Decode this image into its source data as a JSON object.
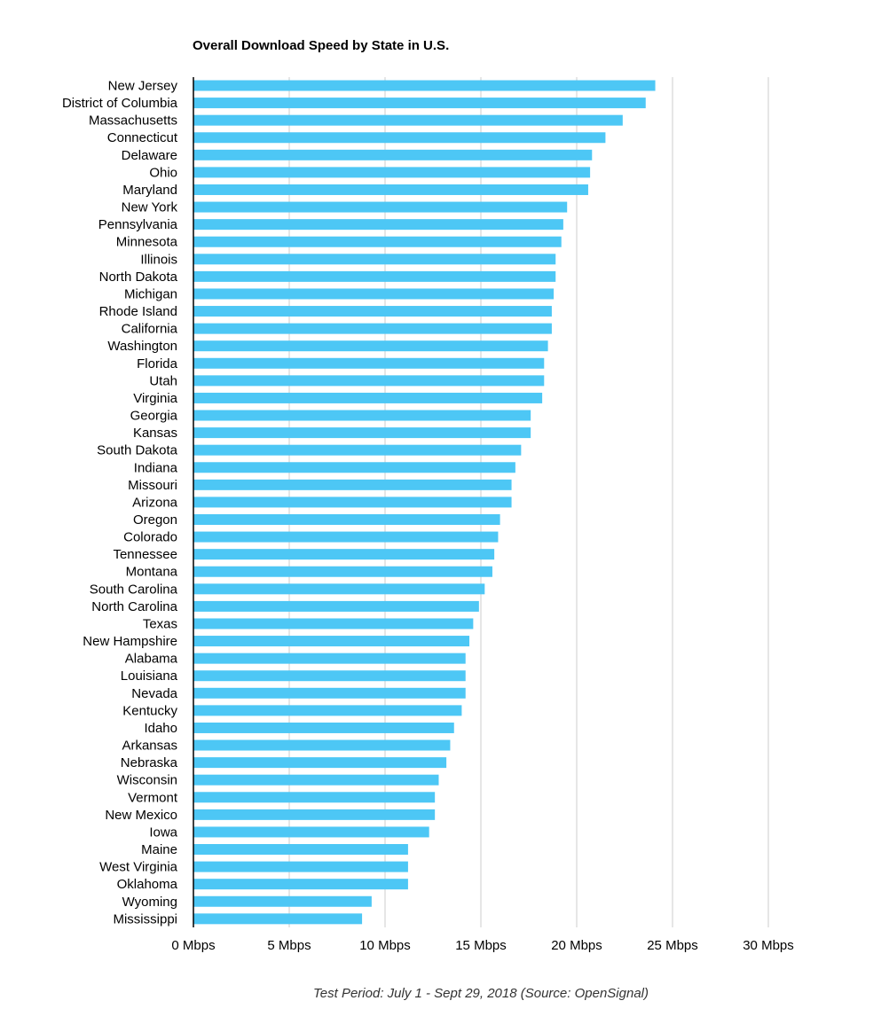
{
  "chart_data": {
    "type": "bar",
    "orientation": "horizontal",
    "title": "Overall Download Speed by State in U.S.",
    "footnote": "Test Period: July 1 - Sept 29, 2018 (Source: OpenSignal)",
    "xlabel": "",
    "ylabel": "",
    "xlim": [
      0,
      30
    ],
    "x_ticks": [
      0,
      5,
      10,
      15,
      20,
      25,
      30
    ],
    "x_tick_labels": [
      "0 Mbps",
      "5 Mbps",
      "10 Mbps",
      "15 Mbps",
      "20 Mbps",
      "25 Mbps",
      "30 Mbps"
    ],
    "grid": "vertical",
    "legend": "none",
    "bar_color": "#4dc7f5",
    "gridline_color": "#cccccc",
    "axis_color": "#000000",
    "categories": [
      "New Jersey",
      "District of Columbia",
      "Massachusetts",
      "Connecticut",
      "Delaware",
      "Ohio",
      "Maryland",
      "New York",
      "Pennsylvania",
      "Minnesota",
      "Illinois",
      "North Dakota",
      "Michigan",
      "Rhode Island",
      "California",
      "Washington",
      "Florida",
      "Utah",
      "Virginia",
      "Georgia",
      "Kansas",
      "South Dakota",
      "Indiana",
      "Missouri",
      "Arizona",
      "Oregon",
      "Colorado",
      "Tennessee",
      "Montana",
      "South Carolina",
      "North Carolina",
      "Texas",
      "New Hampshire",
      "Alabama",
      "Louisiana",
      "Nevada",
      "Kentucky",
      "Idaho",
      "Arkansas",
      "Nebraska",
      "Wisconsin",
      "Vermont",
      "New Mexico",
      "Iowa",
      "Maine",
      "West Virginia",
      "Oklahoma",
      "Wyoming",
      "Mississippi"
    ],
    "values": [
      24.1,
      23.6,
      22.4,
      21.5,
      20.8,
      20.7,
      20.6,
      19.5,
      19.3,
      19.2,
      18.9,
      18.9,
      18.8,
      18.7,
      18.7,
      18.5,
      18.3,
      18.3,
      18.2,
      17.6,
      17.6,
      17.1,
      16.8,
      16.6,
      16.6,
      16.0,
      15.9,
      15.7,
      15.6,
      15.2,
      14.9,
      14.6,
      14.4,
      14.2,
      14.2,
      14.2,
      14.0,
      13.6,
      13.4,
      13.2,
      12.8,
      12.6,
      12.6,
      12.3,
      11.2,
      11.2,
      11.2,
      9.3,
      8.8
    ]
  }
}
